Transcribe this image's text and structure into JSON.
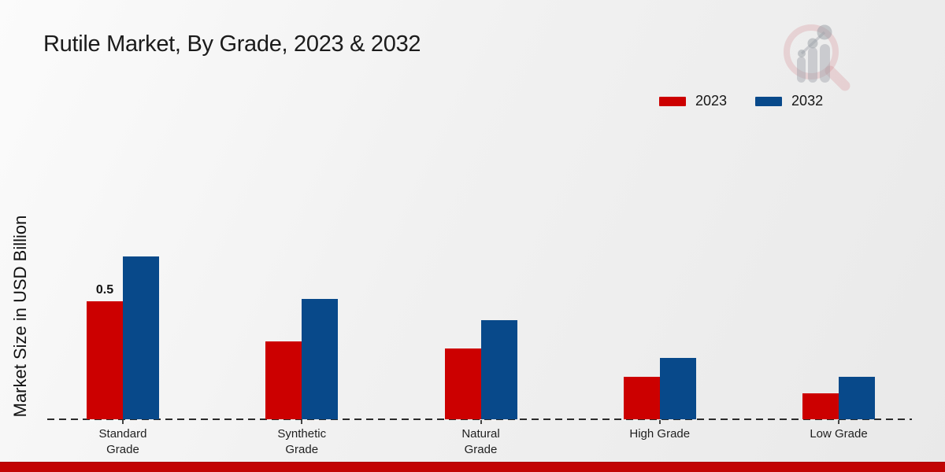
{
  "page": {
    "title": "Rutile Market, By Grade, 2023 & 2032"
  },
  "icons": {
    "watermark": "magnifying-glass-growth-chart-logo"
  },
  "legend": {
    "items": [
      {
        "label": "2023",
        "color": "#cc0000"
      },
      {
        "label": "2032",
        "color": "#08498a"
      }
    ]
  },
  "chart_data": {
    "type": "bar",
    "title": "Rutile Market, By Grade, 2023 & 2032",
    "categories": [
      "Standard Grade",
      "Synthetic Grade",
      "Natural Grade",
      "High Grade",
      "Low Grade"
    ],
    "tick_labels": [
      "Standard\nGrade",
      "Synthetic\nGrade",
      "Natural\nGrade",
      "High Grade",
      "Low Grade"
    ],
    "series": [
      {
        "name": "2023",
        "color": "#cc0000",
        "values": [
          0.5,
          0.33,
          0.3,
          0.18,
          0.11
        ]
      },
      {
        "name": "2032",
        "color": "#08498a",
        "values": [
          0.69,
          0.51,
          0.42,
          0.26,
          0.18
        ]
      }
    ],
    "annotations": [
      {
        "series": "2023",
        "category": "Standard Grade",
        "text": "0.5"
      }
    ],
    "xlabel": "",
    "ylabel": "Market Size in USD Billion",
    "ylim": [
      0,
      1.2
    ],
    "grid": false,
    "y_axis_ticks_visible": false,
    "legend_position": "top-right"
  }
}
